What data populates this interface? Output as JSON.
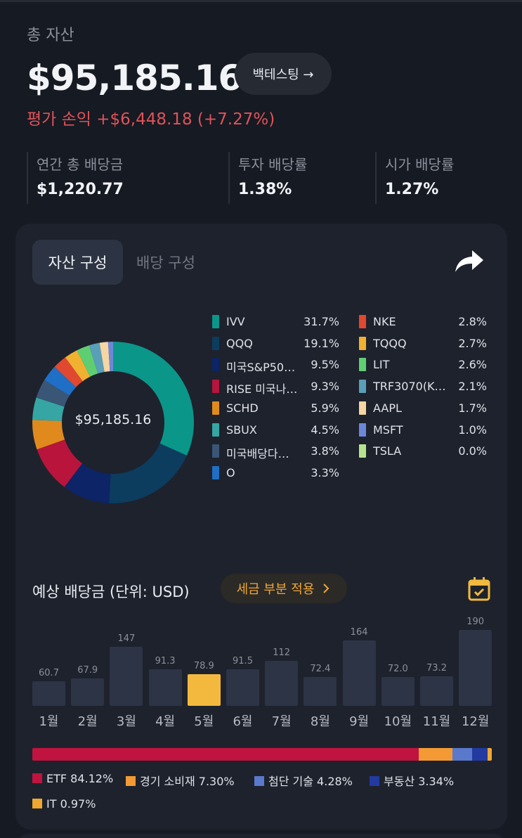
{
  "summary": {
    "total_label": "총 자산",
    "total_amount": "$95,185.16",
    "backtest_label": "백테스팅 →",
    "pnl": "평가 손익 +$6,448.18 (+7.27%)"
  },
  "stats": [
    {
      "label": "연간 총 배당금",
      "value": "$1,220.77"
    },
    {
      "label": "투자 배당률",
      "value": "1.38%"
    },
    {
      "label": "시가 배당률",
      "value": "1.27%"
    }
  ],
  "tabs": {
    "active": "자산 구성",
    "inactive": "배당 구성"
  },
  "icons": {
    "share": "share-icon",
    "calendar": "calendar-check-icon",
    "chevron": "chevron-right-icon"
  },
  "composition": {
    "center_label": "$95,185.16",
    "items": [
      {
        "name": "IVV",
        "pct": "31.7%",
        "value": 31.7,
        "color": "#0b968a"
      },
      {
        "name": "QQQ",
        "pct": "19.1%",
        "value": 19.1,
        "color": "#0c3c5e"
      },
      {
        "name": "미국S&P50…",
        "pct": "9.5%",
        "value": 9.5,
        "color": "#0d2466"
      },
      {
        "name": "RISE 미국나…",
        "pct": "9.3%",
        "value": 9.3,
        "color": "#b8143c"
      },
      {
        "name": "SCHD",
        "pct": "5.9%",
        "value": 5.9,
        "color": "#e08a1e"
      },
      {
        "name": "SBUX",
        "pct": "4.5%",
        "value": 4.5,
        "color": "#35a6a3"
      },
      {
        "name": "미국배당다…",
        "pct": "3.8%",
        "value": 3.8,
        "color": "#3a5677"
      },
      {
        "name": "O",
        "pct": "3.3%",
        "value": 3.3,
        "color": "#1f6fc6"
      },
      {
        "name": "NKE",
        "pct": "2.8%",
        "value": 2.8,
        "color": "#e0482f"
      },
      {
        "name": "TQQQ",
        "pct": "2.7%",
        "value": 2.7,
        "color": "#f0b131"
      },
      {
        "name": "LIT",
        "pct": "2.6%",
        "value": 2.6,
        "color": "#5fce73"
      },
      {
        "name": "TRF3070(K…",
        "pct": "2.1%",
        "value": 2.1,
        "color": "#5a9fb8"
      },
      {
        "name": "AAPL",
        "pct": "1.7%",
        "value": 1.7,
        "color": "#f6d6a2"
      },
      {
        "name": "MSFT",
        "pct": "1.0%",
        "value": 1.0,
        "color": "#6d87d8"
      },
      {
        "name": "TSLA",
        "pct": "0.0%",
        "value": 0.0,
        "color": "#b6e48e"
      }
    ]
  },
  "dividends": {
    "title": "예상 배당금 (단위: USD)",
    "tax_label": "세금 부분 적용"
  },
  "chart_data": {
    "type": "bar",
    "categories": [
      "1월",
      "2월",
      "3월",
      "4월",
      "5월",
      "6월",
      "7월",
      "8월",
      "9월",
      "10월",
      "11월",
      "12월"
    ],
    "values": [
      60.7,
      67.9,
      147,
      91.3,
      78.9,
      91.5,
      112,
      72.4,
      164,
      72.0,
      73.2,
      190
    ],
    "labels": [
      "60.7",
      "67.9",
      "147",
      "91.3",
      "78.9",
      "91.5",
      "112",
      "72.4",
      "164",
      "72.0",
      "73.2",
      "190"
    ],
    "highlight_index": 4,
    "highlight_color": "#f3b93f",
    "bar_color": "#2c3446"
  },
  "sectors": [
    {
      "label": "ETF 84.12%",
      "value": 84.12,
      "color": "#c0133f"
    },
    {
      "label": "경기 소비재 7.30%",
      "value": 7.3,
      "color": "#f39a35"
    },
    {
      "label": "첨단 기술 4.28%",
      "value": 4.28,
      "color": "#5a78cc"
    },
    {
      "label": "부동산 3.34%",
      "value": 3.34,
      "color": "#233aa0"
    },
    {
      "label": "IT 0.97%",
      "value": 0.97,
      "color": "#f0a830"
    }
  ]
}
